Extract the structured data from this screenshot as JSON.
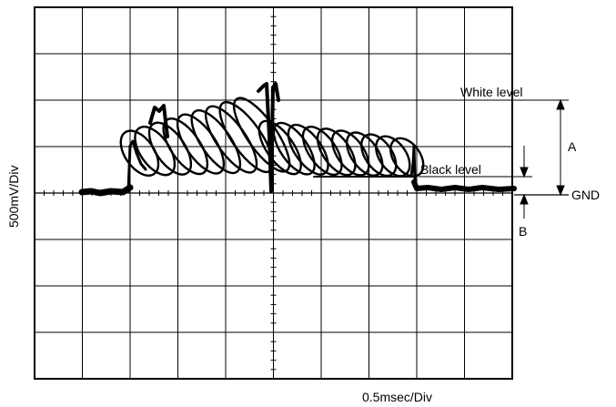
{
  "scope": {
    "grid": {
      "x_divisions": 10,
      "y_divisions": 8
    },
    "y_scale_label": "500mV/Div",
    "x_scale_label": "0.5msec/Div"
  },
  "annotations": {
    "white_level": "White level",
    "black_level": "Black level",
    "gnd": "GND",
    "a": "A",
    "b": "B"
  },
  "colors": {
    "trace": "#000000",
    "grid": "#000000",
    "background": "#ffffff"
  }
}
